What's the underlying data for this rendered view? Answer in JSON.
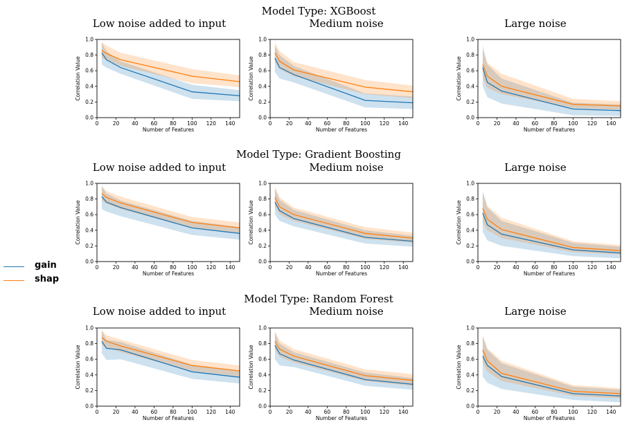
{
  "colors": {
    "gain": "#1f77b4",
    "shap": "#ff7f0e"
  },
  "legend": {
    "gain": "gain",
    "shap": "shap"
  },
  "chart_data": [
    {
      "model_title": "Model Type: XGBoost",
      "panels": [
        {
          "type": "line",
          "title": "Low noise added to input",
          "xlabel": "Number of Features",
          "ylabel": "Correlation Value",
          "xlim": [
            0,
            150
          ],
          "ylim": [
            0.0,
            1.0
          ],
          "xticks": [
            0,
            20,
            40,
            60,
            80,
            100,
            120,
            140
          ],
          "yticks": [
            0.0,
            0.2,
            0.4,
            0.6,
            0.8,
            1.0
          ],
          "x": [
            5,
            10,
            25,
            100,
            150
          ],
          "series": [
            {
              "name": "gain",
              "values": [
                0.83,
                0.74,
                0.64,
                0.33,
                0.28
              ],
              "lower": [
                0.68,
                0.64,
                0.56,
                0.24,
                0.21
              ],
              "upper": [
                0.96,
                0.85,
                0.72,
                0.42,
                0.35
              ]
            },
            {
              "name": "shap",
              "values": [
                0.86,
                0.82,
                0.74,
                0.53,
                0.46
              ],
              "lower": [
                0.76,
                0.74,
                0.66,
                0.44,
                0.39
              ],
              "upper": [
                0.97,
                0.92,
                0.83,
                0.62,
                0.54
              ]
            }
          ]
        },
        {
          "type": "line",
          "title": "Medium noise",
          "xlabel": "Number of Features",
          "ylabel": "Correlation Value",
          "xlim": [
            0,
            150
          ],
          "ylim": [
            0.0,
            1.0
          ],
          "xticks": [
            0,
            20,
            40,
            60,
            80,
            100,
            120,
            140
          ],
          "yticks": [
            0.0,
            0.2,
            0.4,
            0.6,
            0.8,
            1.0
          ],
          "x": [
            5,
            10,
            25,
            100,
            150
          ],
          "series": [
            {
              "name": "gain",
              "values": [
                0.76,
                0.64,
                0.55,
                0.22,
                0.19
              ],
              "lower": [
                0.58,
                0.5,
                0.45,
                0.13,
                0.11
              ],
              "upper": [
                0.92,
                0.8,
                0.66,
                0.31,
                0.27
              ]
            },
            {
              "name": "shap",
              "values": [
                0.83,
                0.72,
                0.61,
                0.39,
                0.33
              ],
              "lower": [
                0.72,
                0.62,
                0.53,
                0.3,
                0.25
              ],
              "upper": [
                0.96,
                0.85,
                0.71,
                0.48,
                0.41
              ]
            }
          ]
        },
        {
          "type": "line",
          "title": "Large noise",
          "xlabel": "Number of Features",
          "ylabel": "Correlation Value",
          "xlim": [
            0,
            150
          ],
          "ylim": [
            0.0,
            1.0
          ],
          "xticks": [
            0,
            20,
            40,
            60,
            80,
            100,
            120,
            140
          ],
          "yticks": [
            0.0,
            0.2,
            0.4,
            0.6,
            0.8,
            1.0
          ],
          "x": [
            5,
            10,
            25,
            100,
            150
          ],
          "series": [
            {
              "name": "gain",
              "values": [
                0.64,
                0.45,
                0.34,
                0.11,
                0.09
              ],
              "lower": [
                0.4,
                0.26,
                0.18,
                0.03,
                0.02
              ],
              "upper": [
                0.92,
                0.68,
                0.5,
                0.19,
                0.17
              ]
            },
            {
              "name": "shap",
              "values": [
                0.68,
                0.53,
                0.4,
                0.17,
                0.15
              ],
              "lower": [
                0.5,
                0.38,
                0.3,
                0.12,
                0.1
              ],
              "upper": [
                0.86,
                0.7,
                0.56,
                0.24,
                0.21
              ]
            }
          ]
        }
      ]
    },
    {
      "model_title": "Model Type: Gradient Boosting",
      "panels": [
        {
          "type": "line",
          "title": "Low noise added to input",
          "xlabel": "Number of Features",
          "ylabel": "Correlation Value",
          "xlim": [
            0,
            150
          ],
          "ylim": [
            0.0,
            1.0
          ],
          "xticks": [
            0,
            20,
            40,
            60,
            80,
            100,
            120,
            140
          ],
          "yticks": [
            0.0,
            0.2,
            0.4,
            0.6,
            0.8,
            1.0
          ],
          "x": [
            5,
            10,
            25,
            100,
            150
          ],
          "series": [
            {
              "name": "gain",
              "values": [
                0.83,
                0.76,
                0.69,
                0.43,
                0.36
              ],
              "lower": [
                0.67,
                0.64,
                0.58,
                0.34,
                0.28
              ],
              "upper": [
                0.97,
                0.87,
                0.78,
                0.52,
                0.44
              ]
            },
            {
              "name": "shap",
              "values": [
                0.87,
                0.82,
                0.75,
                0.5,
                0.43
              ],
              "lower": [
                0.78,
                0.74,
                0.67,
                0.43,
                0.37
              ],
              "upper": [
                0.96,
                0.9,
                0.83,
                0.57,
                0.5
              ]
            }
          ]
        },
        {
          "type": "line",
          "title": "Medium noise",
          "xlabel": "Number of Features",
          "ylabel": "Correlation Value",
          "xlim": [
            0,
            150
          ],
          "ylim": [
            0.0,
            1.0
          ],
          "xticks": [
            0,
            20,
            40,
            60,
            80,
            100,
            120,
            140
          ],
          "yticks": [
            0.0,
            0.2,
            0.4,
            0.6,
            0.8,
            1.0
          ],
          "x": [
            5,
            10,
            25,
            100,
            150
          ],
          "series": [
            {
              "name": "gain",
              "values": [
                0.76,
                0.65,
                0.55,
                0.31,
                0.26
              ],
              "lower": [
                0.6,
                0.52,
                0.45,
                0.23,
                0.19
              ],
              "upper": [
                0.93,
                0.79,
                0.66,
                0.4,
                0.33
              ]
            },
            {
              "name": "shap",
              "values": [
                0.82,
                0.7,
                0.6,
                0.36,
                0.3
              ],
              "lower": [
                0.7,
                0.6,
                0.52,
                0.29,
                0.24
              ],
              "upper": [
                0.96,
                0.82,
                0.69,
                0.44,
                0.37
              ]
            }
          ]
        },
        {
          "type": "line",
          "title": "Large noise",
          "xlabel": "Number of Features",
          "ylabel": "Correlation Value",
          "xlim": [
            0,
            150
          ],
          "ylim": [
            0.0,
            1.0
          ],
          "xticks": [
            0,
            20,
            40,
            60,
            80,
            100,
            120,
            140
          ],
          "yticks": [
            0.0,
            0.2,
            0.4,
            0.6,
            0.8,
            1.0
          ],
          "x": [
            5,
            10,
            25,
            100,
            150
          ],
          "series": [
            {
              "name": "gain",
              "values": [
                0.62,
                0.47,
                0.35,
                0.15,
                0.11
              ],
              "lower": [
                0.38,
                0.27,
                0.2,
                0.07,
                0.04
              ],
              "upper": [
                0.9,
                0.69,
                0.52,
                0.24,
                0.19
              ]
            },
            {
              "name": "shap",
              "values": [
                0.68,
                0.54,
                0.41,
                0.18,
                0.14
              ],
              "lower": [
                0.5,
                0.4,
                0.3,
                0.12,
                0.09
              ],
              "upper": [
                0.88,
                0.71,
                0.56,
                0.26,
                0.21
              ]
            }
          ]
        }
      ]
    },
    {
      "model_title": "Model Type: Random Forest",
      "panels": [
        {
          "type": "line",
          "title": "Low noise added to input",
          "xlabel": "Number of Features",
          "ylabel": "Correlation Value",
          "xlim": [
            0,
            150
          ],
          "ylim": [
            0.0,
            1.0
          ],
          "xticks": [
            0,
            20,
            40,
            60,
            80,
            100,
            120,
            140
          ],
          "yticks": [
            0.0,
            0.2,
            0.4,
            0.6,
            0.8,
            1.0
          ],
          "x": [
            5,
            10,
            25,
            100,
            150
          ],
          "series": [
            {
              "name": "gain",
              "values": [
                0.83,
                0.74,
                0.72,
                0.44,
                0.37
              ],
              "lower": [
                0.68,
                0.59,
                0.6,
                0.35,
                0.29
              ],
              "upper": [
                0.97,
                0.85,
                0.82,
                0.53,
                0.45
              ]
            },
            {
              "name": "shap",
              "values": [
                0.88,
                0.83,
                0.77,
                0.52,
                0.45
              ],
              "lower": [
                0.78,
                0.75,
                0.69,
                0.45,
                0.38
              ],
              "upper": [
                0.97,
                0.91,
                0.85,
                0.59,
                0.52
              ]
            }
          ]
        },
        {
          "type": "line",
          "title": "Medium noise",
          "xlabel": "Number of Features",
          "ylabel": "Correlation Value",
          "xlim": [
            0,
            150
          ],
          "ylim": [
            0.0,
            1.0
          ],
          "xticks": [
            0,
            20,
            40,
            60,
            80,
            100,
            120,
            140
          ],
          "yticks": [
            0.0,
            0.2,
            0.4,
            0.6,
            0.8,
            1.0
          ],
          "x": [
            5,
            10,
            25,
            100,
            150
          ],
          "series": [
            {
              "name": "gain",
              "values": [
                0.78,
                0.67,
                0.59,
                0.34,
                0.28
              ],
              "lower": [
                0.6,
                0.52,
                0.5,
                0.26,
                0.21
              ],
              "upper": [
                0.94,
                0.8,
                0.69,
                0.43,
                0.36
              ]
            },
            {
              "name": "shap",
              "values": [
                0.83,
                0.73,
                0.64,
                0.39,
                0.33
              ],
              "lower": [
                0.72,
                0.63,
                0.56,
                0.32,
                0.26
              ],
              "upper": [
                0.96,
                0.84,
                0.73,
                0.47,
                0.41
              ]
            }
          ]
        },
        {
          "type": "line",
          "title": "Large noise",
          "xlabel": "Number of Features",
          "ylabel": "Correlation Value",
          "xlim": [
            0,
            150
          ],
          "ylim": [
            0.0,
            1.0
          ],
          "xticks": [
            0,
            20,
            40,
            60,
            80,
            100,
            120,
            140
          ],
          "yticks": [
            0.0,
            0.2,
            0.4,
            0.6,
            0.8,
            1.0
          ],
          "x": [
            5,
            10,
            25,
            100,
            150
          ],
          "series": [
            {
              "name": "gain",
              "values": [
                0.64,
                0.52,
                0.38,
                0.16,
                0.13
              ],
              "lower": [
                0.38,
                0.3,
                0.22,
                0.08,
                0.05
              ],
              "upper": [
                0.9,
                0.72,
                0.55,
                0.25,
                0.21
              ]
            },
            {
              "name": "shap",
              "values": [
                0.72,
                0.58,
                0.42,
                0.19,
                0.16
              ],
              "lower": [
                0.55,
                0.44,
                0.32,
                0.13,
                0.1
              ],
              "upper": [
                0.9,
                0.74,
                0.58,
                0.27,
                0.23
              ]
            }
          ]
        }
      ]
    }
  ]
}
